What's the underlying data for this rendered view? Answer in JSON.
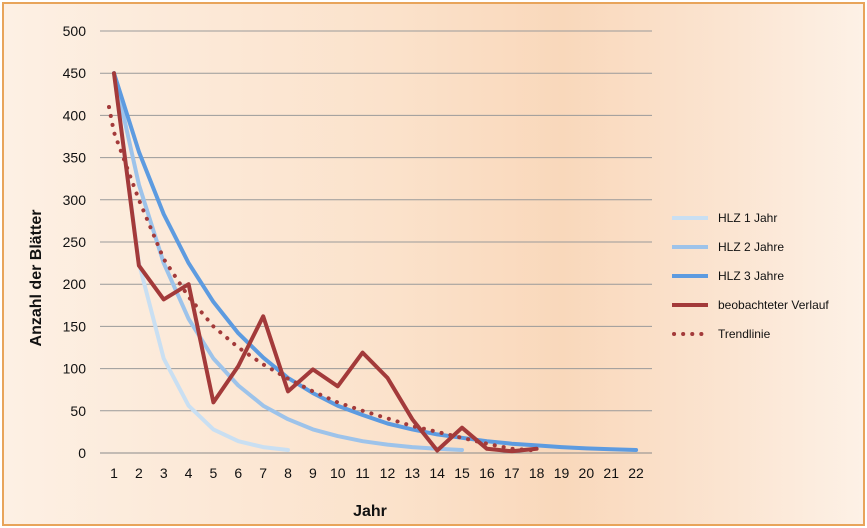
{
  "chart_data": {
    "type": "line",
    "title": "",
    "xlabel": "Jahr",
    "ylabel": "Anzahl der Blätter",
    "xlim": [
      1,
      22
    ],
    "ylim": [
      0,
      500
    ],
    "x_ticks": [
      "1",
      "2",
      "3",
      "4",
      "5",
      "6",
      "7",
      "8",
      "9",
      "10",
      "11",
      "12",
      "13",
      "14",
      "15",
      "16",
      "17",
      "18",
      "19",
      "20",
      "21",
      "22"
    ],
    "y_ticks": [
      "0",
      "50",
      "100",
      "150",
      "200",
      "250",
      "300",
      "350",
      "400",
      "450",
      "500"
    ],
    "grid": true,
    "legend_position": "right",
    "series": [
      {
        "name": "HLZ  1 Jahr",
        "color": "#c9dff2",
        "style": "solid",
        "x": [
          1,
          2,
          3,
          4,
          5,
          6,
          7,
          8
        ],
        "values": [
          450,
          225,
          112,
          56,
          28,
          14,
          7,
          3.5
        ]
      },
      {
        "name": "HLZ  2 Jahre",
        "color": "#9dc3ea",
        "style": "solid",
        "x": [
          1,
          2,
          3,
          4,
          5,
          6,
          7,
          8,
          9,
          10,
          11,
          12,
          13,
          14,
          15
        ],
        "values": [
          450,
          318,
          225,
          159,
          112,
          80,
          56,
          40,
          28,
          20,
          14,
          10,
          7,
          5,
          3.5
        ]
      },
      {
        "name": "HLZ  3 Jahre",
        "color": "#5d9be0",
        "style": "solid",
        "x": [
          1,
          2,
          3,
          4,
          5,
          6,
          7,
          8,
          9,
          10,
          11,
          12,
          13,
          14,
          15,
          16,
          17,
          18,
          19,
          20,
          21,
          22
        ],
        "values": [
          450,
          357,
          283,
          225,
          179,
          142,
          113,
          89,
          71,
          56,
          45,
          35,
          28,
          22,
          18,
          14,
          11,
          9,
          7,
          5.5,
          4.4,
          3.5
        ]
      },
      {
        "name": "beobachteter Verlauf",
        "color": "#a33a3a",
        "style": "solid",
        "x": [
          1,
          2,
          3,
          4,
          5,
          6,
          7,
          8,
          9,
          10,
          11,
          12,
          13,
          14,
          15,
          16,
          17,
          18
        ],
        "values": [
          450,
          222,
          182,
          200,
          60,
          103,
          162,
          73,
          99,
          79,
          119,
          89,
          40,
          3,
          30,
          5,
          2,
          5
        ]
      },
      {
        "name": "Trendlinie",
        "color": "#a33a3a",
        "style": "dotted",
        "x": [
          0.8,
          1,
          2,
          3,
          4,
          5,
          6,
          7,
          8,
          9,
          10,
          11,
          12,
          13,
          14,
          15,
          16,
          17,
          18
        ],
        "values": [
          410,
          380,
          300,
          230,
          185,
          150,
          125,
          105,
          88,
          73,
          60,
          50,
          41,
          32,
          25,
          18,
          11,
          5,
          3
        ]
      }
    ]
  }
}
